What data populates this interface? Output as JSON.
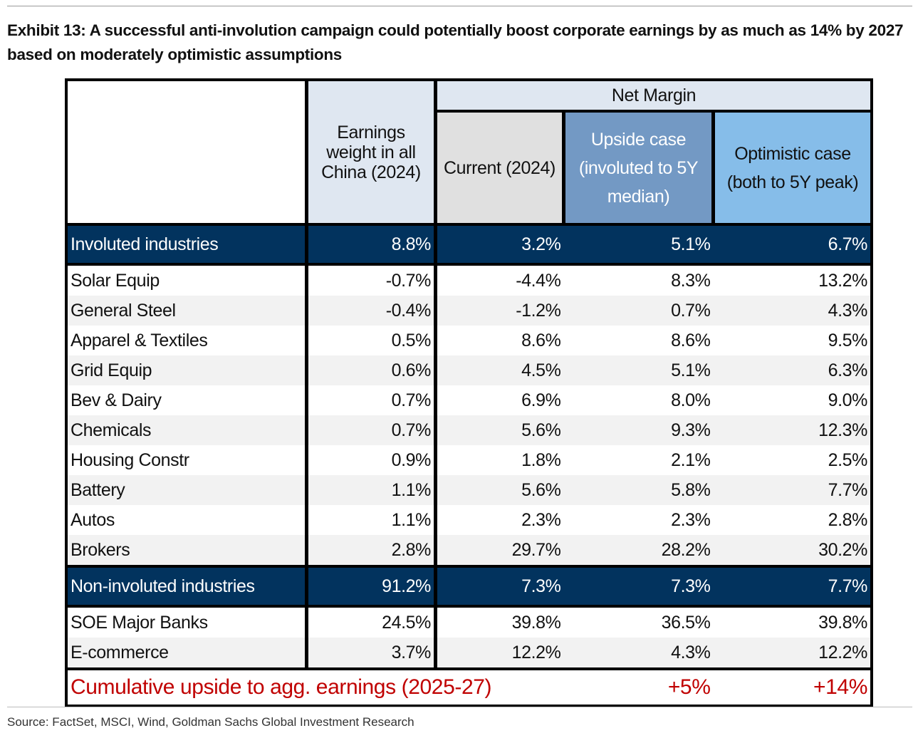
{
  "title": "Exhibit 13: A successful anti-involution campaign could potentially boost corporate earnings by as much as 14% by 2027 based on moderately optimistic assumptions",
  "headers": {
    "net_margin": "Net Margin",
    "weight": "Earnings weight in all China (2024)",
    "current": "Current (2024)",
    "upside": "Upside case (involuted to 5Y median)",
    "optimistic": "Optimistic case (both to 5Y peak)"
  },
  "colors": {
    "section": "#02335e",
    "cumulative": "#c00000",
    "upside": "#7399c4",
    "optimistic": "#86bde9"
  },
  "involuted": {
    "label": "Involuted industries",
    "values": [
      "8.8%",
      "3.2%",
      "5.1%",
      "6.7%"
    ]
  },
  "involuted_rows": [
    {
      "label": "Solar Equip",
      "values": [
        "-0.7%",
        "-4.4%",
        "8.3%",
        "13.2%"
      ]
    },
    {
      "label": "General Steel",
      "values": [
        "-0.4%",
        "-1.2%",
        "0.7%",
        "4.3%"
      ]
    },
    {
      "label": "Apparel & Textiles",
      "values": [
        "0.5%",
        "8.6%",
        "8.6%",
        "9.5%"
      ]
    },
    {
      "label": "Grid Equip",
      "values": [
        "0.6%",
        "4.5%",
        "5.1%",
        "6.3%"
      ]
    },
    {
      "label": "Bev & Dairy",
      "values": [
        "0.7%",
        "6.9%",
        "8.0%",
        "9.0%"
      ]
    },
    {
      "label": "Chemicals",
      "values": [
        "0.7%",
        "5.6%",
        "9.3%",
        "12.3%"
      ]
    },
    {
      "label": "Housing Constr",
      "values": [
        "0.9%",
        "1.8%",
        "2.1%",
        "2.5%"
      ]
    },
    {
      "label": "Battery",
      "values": [
        "1.1%",
        "5.6%",
        "5.8%",
        "7.7%"
      ]
    },
    {
      "label": "Autos",
      "values": [
        "1.1%",
        "2.3%",
        "2.3%",
        "2.8%"
      ]
    },
    {
      "label": "Brokers",
      "values": [
        "2.8%",
        "29.7%",
        "28.2%",
        "30.2%"
      ]
    }
  ],
  "non_involuted": {
    "label": "Non-involuted industries",
    "values": [
      "91.2%",
      "7.3%",
      "7.3%",
      "7.7%"
    ]
  },
  "non_involuted_rows": [
    {
      "label": "SOE Major Banks",
      "values": [
        "24.5%",
        "39.8%",
        "36.5%",
        "39.8%"
      ]
    },
    {
      "label": "E-commerce",
      "values": [
        "3.7%",
        "12.2%",
        "4.3%",
        "12.2%"
      ]
    }
  ],
  "cumulative": {
    "label": "Cumulative upside to agg. earnings (2025-27)",
    "upside": "+5%",
    "optimistic": "+14%"
  },
  "source": "Source: FactSet, MSCI, Wind, Goldman Sachs Global Investment Research"
}
